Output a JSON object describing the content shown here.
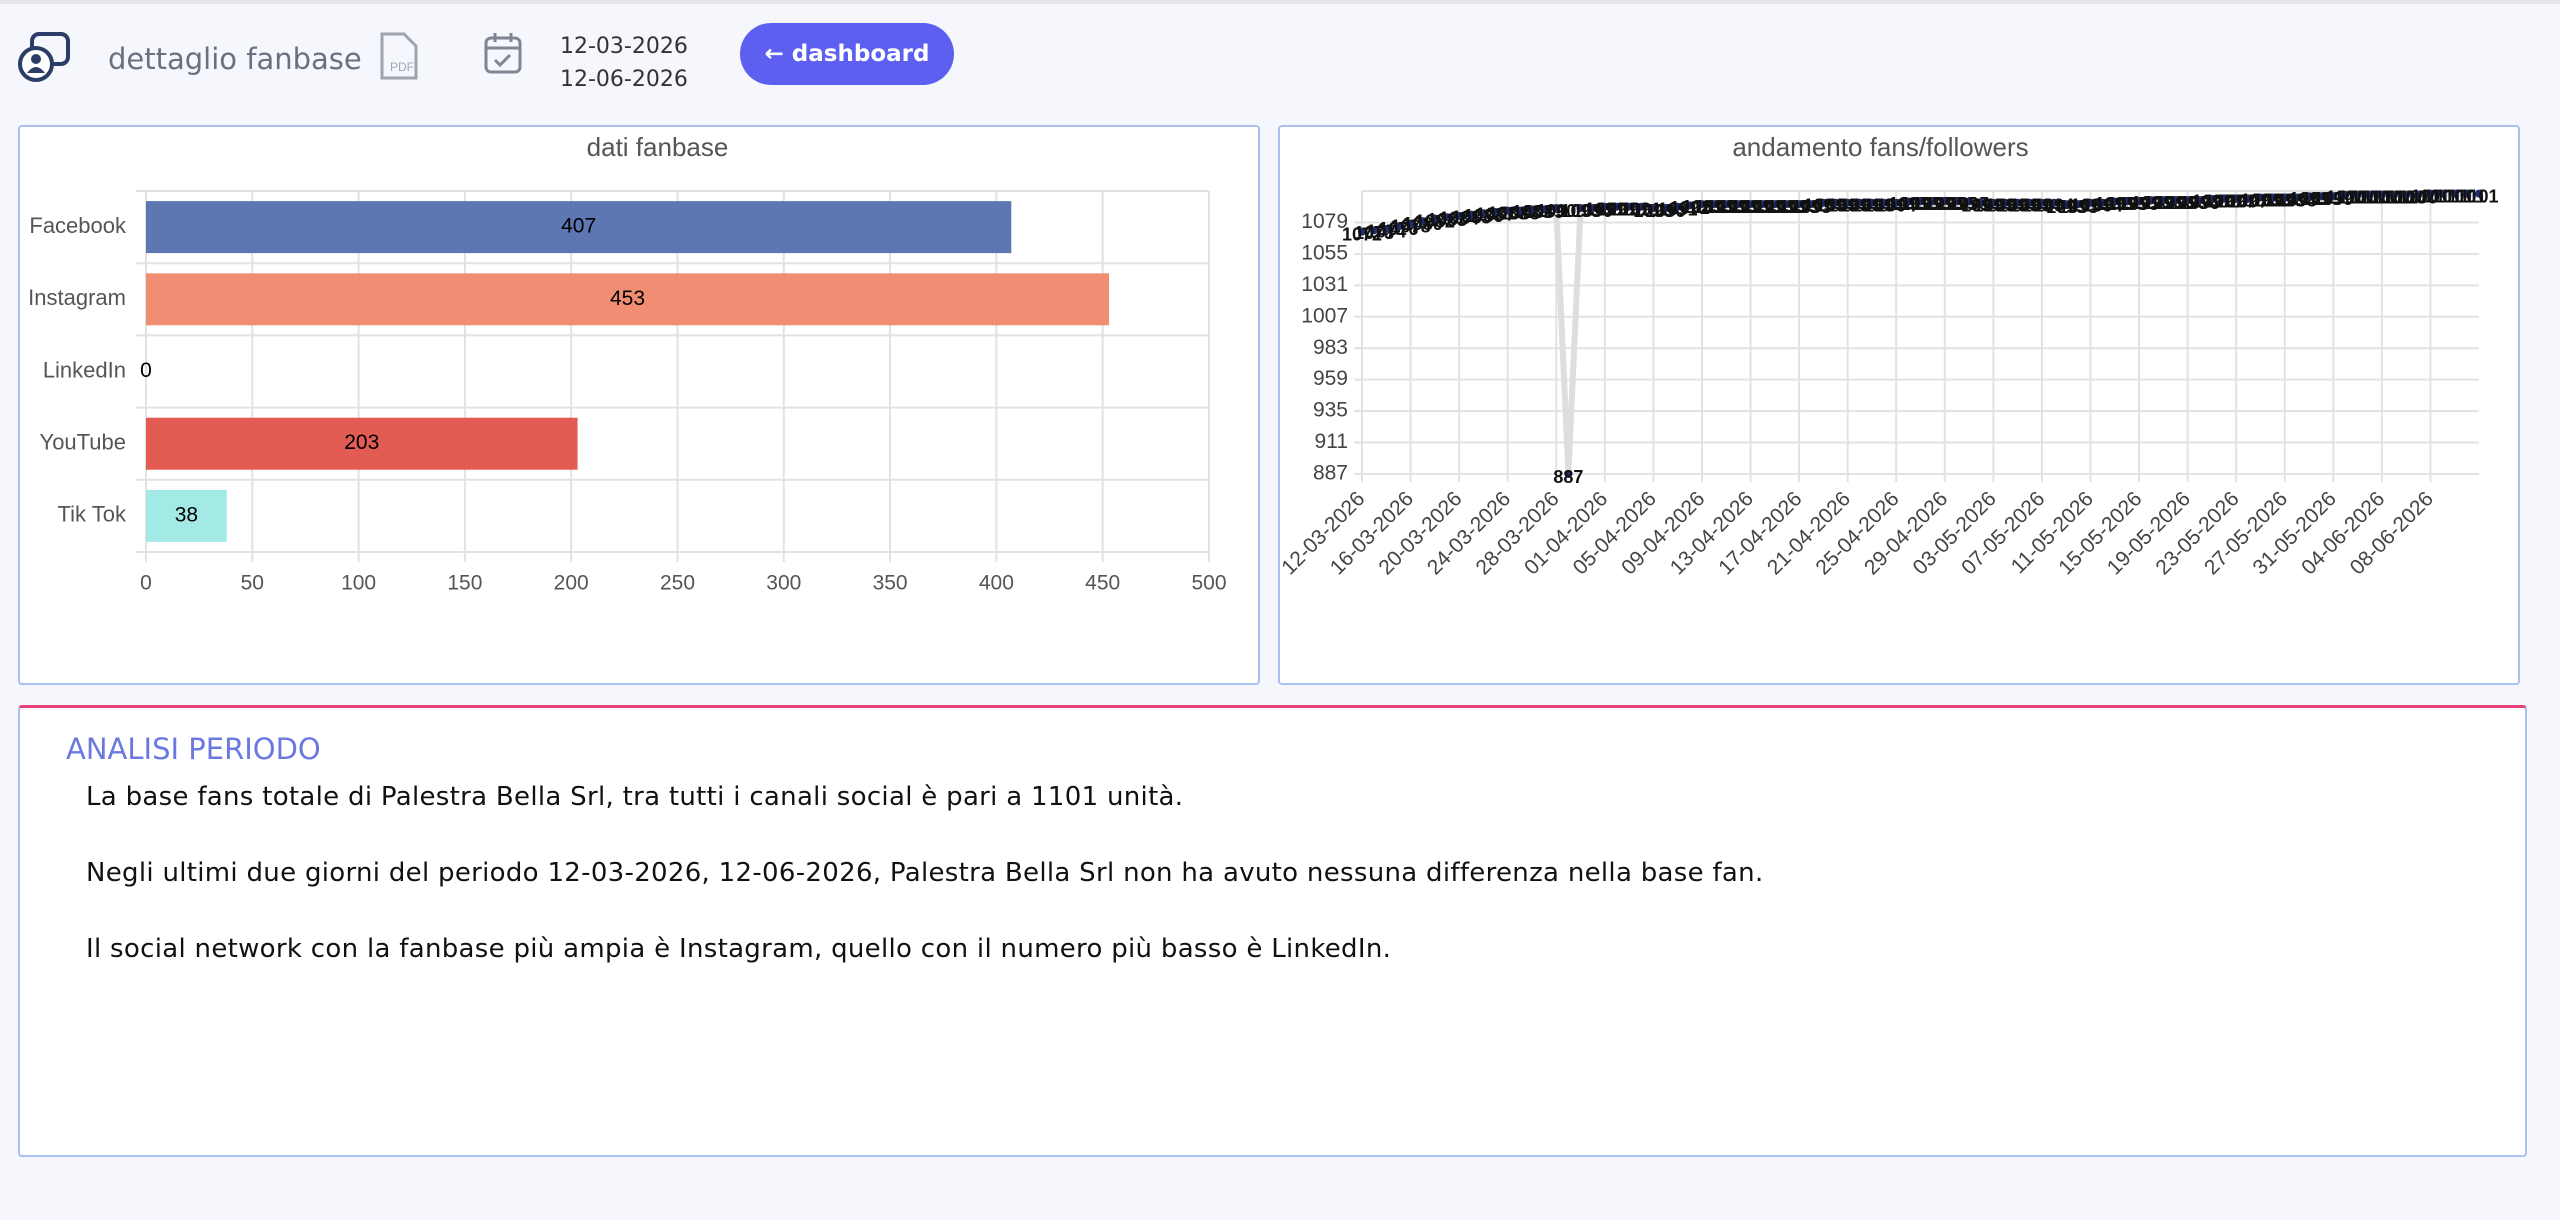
{
  "header": {
    "title": "dettaglio fanbase",
    "pdf_icon_label": "PDF",
    "date_from": "12-03-2026",
    "date_to": "12-06-2026",
    "button": "← dashboard"
  },
  "chart_data": [
    {
      "type": "bar",
      "orientation": "horizontal",
      "title": "dati fanbase",
      "categories": [
        "Facebook",
        "Instagram",
        "LinkedIn",
        "YouTube",
        "Tik Tok"
      ],
      "values": [
        407,
        453,
        0,
        203,
        38
      ],
      "colors": [
        "#556fae",
        "#f0876b",
        "#3b7fbf",
        "#e0534b",
        "#9ee9e5"
      ],
      "xlim": [
        0,
        500
      ],
      "xticks": [
        0,
        50,
        100,
        150,
        200,
        250,
        300,
        350,
        400,
        450,
        500
      ],
      "grid": true
    },
    {
      "type": "line",
      "title": "andamento fans/followers",
      "categories": [
        "12-03-2026",
        null,
        null,
        null,
        "16-03-2026",
        null,
        null,
        null,
        "20-03-2026",
        null,
        null,
        null,
        "24-03-2026",
        null,
        null,
        null,
        "28-03-2026",
        null,
        null,
        null,
        "01-04-2026",
        null,
        null,
        null,
        "05-04-2026",
        null,
        null,
        null,
        "09-04-2026",
        null,
        null,
        null,
        "13-04-2026",
        null,
        null,
        null,
        "17-04-2026",
        null,
        null,
        null,
        "21-04-2026",
        null,
        null,
        null,
        "25-04-2026",
        null,
        null,
        null,
        "29-04-2026",
        null,
        null,
        null,
        "03-05-2026",
        null,
        null,
        null,
        "07-05-2026",
        null,
        null,
        null,
        "11-05-2026",
        null,
        null,
        null,
        "15-05-2026",
        null,
        null,
        null,
        "19-05-2026",
        null,
        null,
        null,
        "23-05-2026",
        null,
        null,
        null,
        "27-05-2026",
        null,
        null,
        null,
        "31-05-2026",
        null,
        null,
        null,
        "04-06-2026",
        null,
        null,
        null,
        "08-06-2026",
        null,
        null,
        null,
        null
      ],
      "values": [
        1072,
        1073,
        1074,
        1076,
        1078,
        1080,
        1082,
        1083,
        1084,
        1085,
        1086,
        1087,
        1088,
        1088,
        1089,
        1089,
        1090,
        887,
        1090,
        1090,
        1091,
        1091,
        1091,
        1091,
        1090,
        1090,
        1091,
        1092,
        1093,
        1093,
        1093,
        1093,
        1093,
        1093,
        1093,
        1093,
        1093,
        1093,
        1094,
        1094,
        1094,
        1094,
        1094,
        1094,
        1094,
        1095,
        1095,
        1095,
        1095,
        1095,
        1095,
        1094,
        1094,
        1094,
        1094,
        1094,
        1094,
        1094,
        1093,
        1093,
        1094,
        1094,
        1095,
        1095,
        1095,
        1096,
        1096,
        1096,
        1096,
        1096,
        1097,
        1097,
        1097,
        1097,
        1098,
        1098,
        1098,
        1098,
        1099,
        1099,
        1099,
        1100,
        1100,
        1100,
        1100,
        1100,
        1100,
        1100,
        1101,
        1101,
        1101,
        1101,
        1101
      ],
      "color": "#dedede",
      "point_color": "#1f2c6e",
      "ylim": [
        887,
        1103
      ],
      "yticks": [
        887,
        911,
        935,
        959,
        983,
        1007,
        1031,
        1055,
        1079
      ],
      "grid": true
    }
  ],
  "analysis": {
    "title": "ANALISI PERIODO",
    "paragraphs": [
      "La base fans totale di Palestra Bella Srl, tra tutti i canali social è pari a 1101 unità.",
      "Negli ultimi due giorni del periodo 12-03-2026, 12-06-2026, Palestra Bella Srl non ha avuto nessuna differenza nella base fan.",
      "Il social network con la fanbase più ampia è Instagram, quello con il numero più basso è LinkedIn."
    ]
  }
}
